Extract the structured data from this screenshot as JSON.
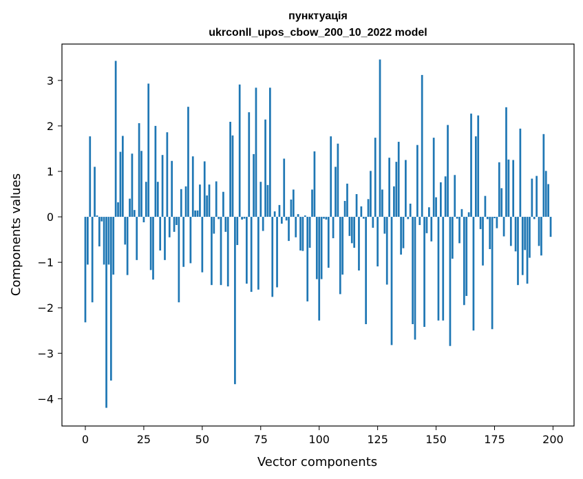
{
  "chart_data": {
    "type": "bar",
    "title_line1": "пунктуація",
    "title_line2": "ukrconll_upos_cbow_200_10_2022 model",
    "xlabel": "Vector components",
    "ylabel": "Components values",
    "xlim": [
      -10,
      209
    ],
    "ylim": [
      -4.6,
      3.8
    ],
    "xticks": [
      0,
      25,
      50,
      75,
      100,
      125,
      150,
      175,
      200
    ],
    "yticks": [
      -4,
      -3,
      -2,
      -1,
      0,
      1,
      2,
      3
    ],
    "ytick_labels": [
      "−4",
      "−3",
      "−2",
      "−1",
      "0",
      "1",
      "2",
      "3"
    ],
    "bar_color": "#1f77b4",
    "x": [
      0,
      1,
      2,
      3,
      4,
      5,
      6,
      7,
      8,
      9,
      10,
      11,
      12,
      13,
      14,
      15,
      16,
      17,
      18,
      19,
      20,
      21,
      22,
      23,
      24,
      25,
      26,
      27,
      28,
      29,
      30,
      31,
      32,
      33,
      34,
      35,
      36,
      37,
      38,
      39,
      40,
      41,
      42,
      43,
      44,
      45,
      46,
      47,
      48,
      49,
      50,
      51,
      52,
      53,
      54,
      55,
      56,
      57,
      58,
      59,
      60,
      61,
      62,
      63,
      64,
      65,
      66,
      67,
      68,
      69,
      70,
      71,
      72,
      73,
      74,
      75,
      76,
      77,
      78,
      79,
      80,
      81,
      82,
      83,
      84,
      85,
      86,
      87,
      88,
      89,
      90,
      91,
      92,
      93,
      94,
      95,
      96,
      97,
      98,
      99,
      100,
      101,
      102,
      103,
      104,
      105,
      106,
      107,
      108,
      109,
      110,
      111,
      112,
      113,
      114,
      115,
      116,
      117,
      118,
      119,
      120,
      121,
      122,
      123,
      124,
      125,
      126,
      127,
      128,
      129,
      130,
      131,
      132,
      133,
      134,
      135,
      136,
      137,
      138,
      139,
      140,
      141,
      142,
      143,
      144,
      145,
      146,
      147,
      148,
      149,
      150,
      151,
      152,
      153,
      154,
      155,
      156,
      157,
      158,
      159,
      160,
      161,
      162,
      163,
      164,
      165,
      166,
      167,
      168,
      169,
      170,
      171,
      172,
      173,
      174,
      175,
      176,
      177,
      178,
      179,
      180,
      181,
      182,
      183,
      184,
      185,
      186,
      187,
      188,
      189,
      190,
      191,
      192,
      193,
      194,
      195,
      196,
      197,
      198,
      199
    ],
    "values": [
      -2.32,
      -1.05,
      1.77,
      -1.88,
      1.1,
      0.03,
      -0.65,
      -0.1,
      -1.05,
      -4.2,
      -1.05,
      -3.6,
      -1.27,
      3.43,
      0.32,
      1.43,
      1.78,
      -0.61,
      -1.28,
      0.4,
      1.39,
      0.15,
      -0.95,
      2.06,
      1.45,
      -0.12,
      0.77,
      2.93,
      -1.17,
      -1.38,
      2.0,
      0.77,
      -0.74,
      1.36,
      -0.95,
      1.86,
      -0.45,
      1.23,
      -0.33,
      -0.18,
      -1.88,
      0.61,
      -1.1,
      0.67,
      2.42,
      -1.02,
      1.33,
      0.14,
      0.14,
      0.71,
      -1.22,
      1.22,
      0.47,
      0.71,
      -1.5,
      -0.37,
      0.78,
      -0.05,
      -1.5,
      0.55,
      -0.33,
      -1.53,
      2.09,
      1.79,
      -3.68,
      -0.62,
      2.91,
      -0.06,
      -0.04,
      -1.47,
      2.3,
      -1.65,
      1.38,
      2.84,
      -1.6,
      0.77,
      -0.31,
      2.14,
      0.7,
      2.84,
      -1.76,
      0.12,
      -1.55,
      0.26,
      -0.15,
      1.28,
      -0.08,
      -0.53,
      0.38,
      0.6,
      -0.45,
      0.06,
      -0.74,
      -0.75,
      0.03,
      -1.86,
      -0.68,
      0.6,
      1.44,
      -1.37,
      -2.28,
      -1.37,
      -0.04,
      -0.06,
      -1.12,
      1.77,
      -0.47,
      1.1,
      1.61,
      -1.7,
      -1.27,
      0.35,
      0.73,
      -0.42,
      -0.58,
      -0.68,
      0.5,
      -1.18,
      0.23,
      -0.04,
      -2.36,
      0.39,
      1.01,
      -0.24,
      1.74,
      -1.09,
      3.46,
      0.6,
      -0.37,
      -1.49,
      1.3,
      -2.82,
      0.67,
      1.21,
      1.65,
      -0.83,
      -0.69,
      1.25,
      -0.05,
      0.29,
      -2.36,
      -2.7,
      1.58,
      -0.18,
      3.12,
      -2.42,
      -0.36,
      0.21,
      -0.54,
      1.74,
      0.43,
      -2.28,
      0.76,
      -2.28,
      0.89,
      2.02,
      -2.84,
      -0.92,
      0.92,
      -0.04,
      -0.58,
      0.17,
      -1.94,
      -1.74,
      0.1,
      2.27,
      -2.5,
      1.77,
      2.23,
      -0.27,
      -1.07,
      0.46,
      -0.05,
      -0.71,
      -2.47,
      -0.03,
      -0.25,
      1.2,
      0.63,
      -0.43,
      2.41,
      1.26,
      -0.64,
      1.25,
      -0.76,
      -1.5,
      1.94,
      -1.28,
      -0.73,
      -1.47,
      -0.9,
      0.84,
      -0.05,
      0.9,
      -0.64,
      -0.85,
      1.82,
      1.01,
      0.72,
      -0.44
    ]
  }
}
